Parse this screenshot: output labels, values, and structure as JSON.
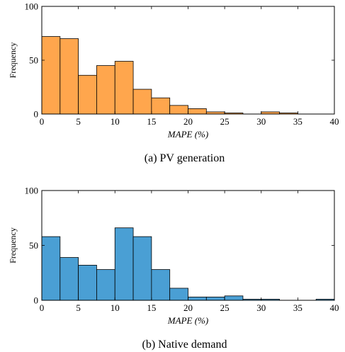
{
  "chart_data": [
    {
      "type": "bar",
      "caption": "(a) PV generation",
      "xlabel": "MAPE (%)",
      "ylabel": "Frequency",
      "bin_edges": [
        0,
        2.5,
        5,
        7.5,
        10,
        12.5,
        15,
        17.5,
        20,
        22.5,
        25,
        27.5,
        30,
        32.5,
        35,
        37.5,
        40
      ],
      "values": [
        72,
        70,
        36,
        45,
        49,
        23,
        15,
        8,
        5,
        2,
        1,
        0,
        2,
        1,
        0,
        0
      ],
      "xlim": [
        0,
        40
      ],
      "ylim": [
        0,
        100
      ],
      "xticks": [
        "0",
        "5",
        "10",
        "15",
        "20",
        "25",
        "30",
        "35",
        "40"
      ],
      "yticks": [
        "0",
        "50",
        "100"
      ],
      "bar_color": "#ffa64d",
      "grid": false
    },
    {
      "type": "bar",
      "caption": "(b) Native demand",
      "xlabel": "MAPE (%)",
      "ylabel": "Frequency",
      "bin_edges": [
        0,
        2.5,
        5,
        7.5,
        10,
        12.5,
        15,
        17.5,
        20,
        22.5,
        25,
        27.5,
        30,
        32.5,
        35,
        37.5,
        40
      ],
      "values": [
        58,
        39,
        32,
        28,
        66,
        58,
        28,
        11,
        3,
        3,
        4,
        1,
        1,
        0,
        0,
        1
      ],
      "xlim": [
        0,
        40
      ],
      "ylim": [
        0,
        100
      ],
      "xticks": [
        "0",
        "5",
        "10",
        "15",
        "20",
        "25",
        "30",
        "35",
        "40"
      ],
      "yticks": [
        "0",
        "50",
        "100"
      ],
      "bar_color": "#4a9fd4",
      "grid": false
    }
  ]
}
